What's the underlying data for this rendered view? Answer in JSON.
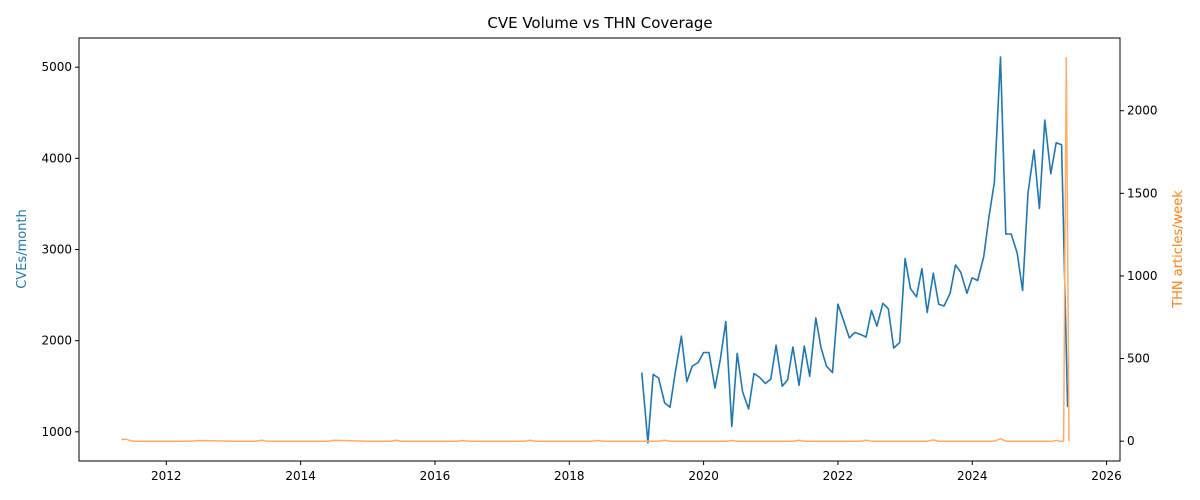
{
  "chart_data": {
    "type": "line",
    "title": "CVE Volume vs THN Coverage",
    "xlabel": "",
    "x_ticks": [
      "2012",
      "2014",
      "2016",
      "2018",
      "2020",
      "2022",
      "2024",
      "2026"
    ],
    "xlim": [
      2010.7,
      2026.2
    ],
    "y_left": {
      "label": "CVEs/month",
      "color": "#1f77b4",
      "ticks": [
        1000,
        2000,
        3000,
        4000,
        5000
      ],
      "ylim": [
        680,
        5320
      ]
    },
    "y_right": {
      "label": "THN articles/week",
      "color": "#ff7f0e",
      "ticks": [
        0,
        500,
        1000,
        1500,
        2000
      ],
      "ylim": [
        -120,
        2440
      ]
    },
    "grid": false,
    "series": [
      {
        "axis": "left",
        "color": "#1f77b4",
        "x": [
          2019.08,
          2019.17,
          2019.25,
          2019.33,
          2019.42,
          2019.5,
          2019.58,
          2019.67,
          2019.75,
          2019.83,
          2019.92,
          2020.0,
          2020.08,
          2020.17,
          2020.25,
          2020.33,
          2020.42,
          2020.5,
          2020.58,
          2020.67,
          2020.75,
          2020.83,
          2020.92,
          2021.0,
          2021.08,
          2021.17,
          2021.25,
          2021.33,
          2021.42,
          2021.5,
          2021.58,
          2021.67,
          2021.75,
          2021.83,
          2021.92,
          2022.0,
          2022.08,
          2022.17,
          2022.25,
          2022.33,
          2022.42,
          2022.5,
          2022.58,
          2022.67,
          2022.75,
          2022.83,
          2022.92,
          2023.0,
          2023.08,
          2023.17,
          2023.25,
          2023.33,
          2023.42,
          2023.5,
          2023.58,
          2023.67,
          2023.75,
          2023.83,
          2023.92,
          2024.0,
          2024.08,
          2024.17,
          2024.25,
          2024.33,
          2024.42,
          2024.5,
          2024.58,
          2024.67,
          2024.75,
          2024.83,
          2024.92,
          2025.0,
          2025.08,
          2025.17,
          2025.25,
          2025.33,
          2025.42
        ],
        "values": [
          1650,
          880,
          1630,
          1590,
          1320,
          1270,
          1660,
          2050,
          1550,
          1720,
          1760,
          1870,
          1870,
          1480,
          1800,
          2210,
          1060,
          1860,
          1440,
          1250,
          1640,
          1600,
          1530,
          1580,
          1950,
          1500,
          1570,
          1930,
          1510,
          1940,
          1610,
          2250,
          1920,
          1720,
          1650,
          2400,
          2230,
          2030,
          2090,
          2070,
          2040,
          2330,
          2160,
          2410,
          2350,
          1920,
          1980,
          2900,
          2570,
          2480,
          2790,
          2310,
          2740,
          2400,
          2380,
          2520,
          2830,
          2750,
          2520,
          2690,
          2660,
          2920,
          3360,
          3740,
          5110,
          3170,
          3170,
          2960,
          2550,
          3620,
          4090,
          3450,
          4420,
          3830,
          4170,
          4150,
          1270
        ]
      },
      {
        "axis": "right",
        "color": "#ffad66",
        "x": [
          2011.33,
          2011.4,
          2011.5,
          2011.58,
          2011.75,
          2012.0,
          2012.33,
          2012.5,
          2013.0,
          2013.33,
          2013.42,
          2013.5,
          2014.0,
          2014.42,
          2014.5,
          2015.0,
          2015.33,
          2015.42,
          2015.5,
          2016.0,
          2016.33,
          2016.42,
          2016.5,
          2017.0,
          2017.33,
          2017.42,
          2017.5,
          2018.0,
          2018.33,
          2018.42,
          2018.5,
          2019.0,
          2019.33,
          2019.42,
          2019.5,
          2020.0,
          2020.33,
          2020.42,
          2020.5,
          2021.0,
          2021.33,
          2021.42,
          2021.5,
          2022.0,
          2022.33,
          2022.42,
          2022.5,
          2023.0,
          2023.33,
          2023.42,
          2023.5,
          2024.0,
          2024.33,
          2024.42,
          2024.5,
          2025.0,
          2025.2,
          2025.25,
          2025.3,
          2025.36,
          2025.4,
          2025.44
        ],
        "values": [
          10,
          12,
          0,
          0,
          0,
          0,
          0,
          4,
          0,
          0,
          6,
          0,
          0,
          0,
          5,
          0,
          0,
          6,
          0,
          0,
          0,
          4,
          0,
          0,
          0,
          5,
          0,
          0,
          0,
          4,
          0,
          0,
          0,
          5,
          0,
          0,
          0,
          4,
          0,
          0,
          0,
          5,
          0,
          0,
          0,
          6,
          0,
          0,
          0,
          8,
          0,
          0,
          0,
          15,
          0,
          0,
          0,
          5,
          0,
          0,
          2320,
          0
        ]
      }
    ]
  }
}
